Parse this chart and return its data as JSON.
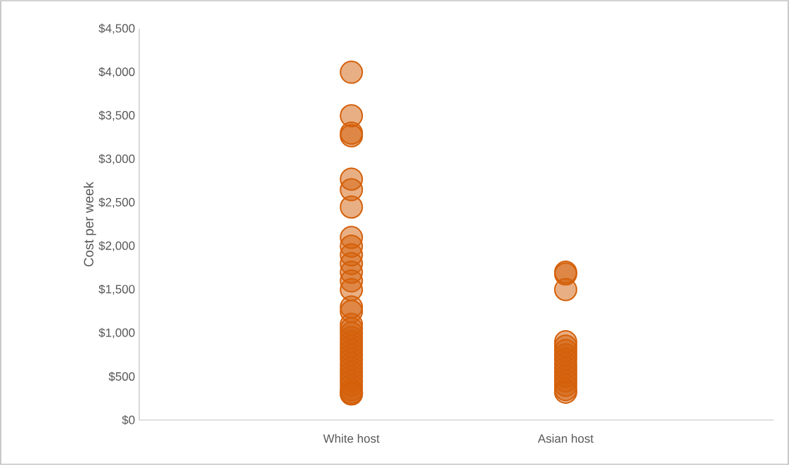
{
  "chart_data": {
    "type": "scatter",
    "ylabel": "Cost per week",
    "categories": [
      "White host",
      "Asian host"
    ],
    "series": [
      {
        "color": "#d4600a",
        "x": [
          "White host",
          "White host",
          "White host",
          "White host",
          "White host",
          "White host",
          "White host",
          "White host",
          "White host",
          "White host",
          "White host",
          "White host",
          "White host",
          "White host",
          "White host",
          "White host",
          "White host",
          "White host",
          "White host",
          "White host",
          "White host",
          "White host",
          "White host",
          "White host",
          "White host",
          "White host",
          "White host",
          "White host",
          "White host",
          "White host",
          "White host",
          "White host",
          "White host",
          "White host",
          "White host",
          "Asian host",
          "Asian host",
          "Asian host",
          "Asian host",
          "Asian host",
          "Asian host",
          "Asian host",
          "Asian host",
          "Asian host",
          "Asian host",
          "Asian host",
          "Asian host",
          "Asian host",
          "Asian host",
          "Asian host",
          "Asian host"
        ],
        "values": [
          4000,
          3500,
          3300,
          3270,
          2770,
          2650,
          2450,
          2100,
          2000,
          1900,
          1800,
          1700,
          1600,
          1500,
          1300,
          1250,
          1100,
          1050,
          1000,
          950,
          900,
          850,
          800,
          750,
          700,
          650,
          600,
          550,
          500,
          450,
          400,
          350,
          320,
          300,
          300,
          1700,
          1680,
          1500,
          900,
          850,
          800,
          750,
          700,
          650,
          600,
          550,
          500,
          450,
          400,
          350,
          320
        ]
      }
    ],
    "ylim": [
      0,
      4500
    ],
    "yticks": [
      {
        "value": 0,
        "label": "$0"
      },
      {
        "value": 500,
        "label": "$500"
      },
      {
        "value": 1000,
        "label": "$1,000"
      },
      {
        "value": 1500,
        "label": "$1,500"
      },
      {
        "value": 2000,
        "label": "$2,000"
      },
      {
        "value": 2500,
        "label": "$2,500"
      },
      {
        "value": 3000,
        "label": "$3,000"
      },
      {
        "value": 3500,
        "label": "$3,500"
      },
      {
        "value": 4000,
        "label": "$4,000"
      },
      {
        "value": 4500,
        "label": "$4,500"
      }
    ],
    "grid": false,
    "marker": "circle"
  }
}
